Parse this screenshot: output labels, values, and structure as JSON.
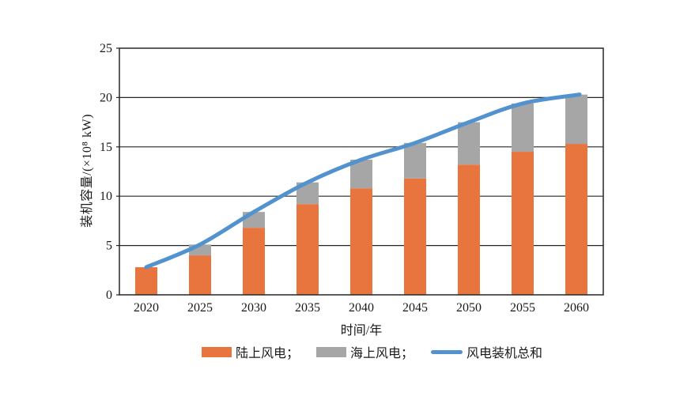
{
  "page": {
    "background": "#ffffff"
  },
  "chart_data": {
    "type": "bar",
    "subtype": "stacked-bar-with-line-overlay",
    "title": "",
    "xlabel": "时间/年",
    "ylabel": "装机容量/(×10⁸ kW)",
    "categories": [
      "2020",
      "2025",
      "2030",
      "2035",
      "2040",
      "2045",
      "2050",
      "2055",
      "2060"
    ],
    "series": [
      {
        "name": "陆上风电",
        "type": "bar",
        "color": "#E8743E",
        "values": [
          2.8,
          4.0,
          6.8,
          9.2,
          10.8,
          11.8,
          13.2,
          14.5,
          15.3
        ]
      },
      {
        "name": "海上风电",
        "type": "bar",
        "color": "#A6A6A6",
        "values": [
          0,
          1.1,
          1.6,
          2.2,
          2.9,
          3.6,
          4.3,
          4.9,
          5.0
        ]
      },
      {
        "name": "风电装机总和",
        "type": "line",
        "color": "#5292CE",
        "values": [
          2.8,
          5.1,
          8.4,
          11.4,
          13.7,
          15.4,
          17.5,
          19.4,
          20.3
        ]
      }
    ],
    "ylim": [
      0,
      25
    ],
    "yticks": [
      "0",
      "5",
      "10",
      "15",
      "20",
      "25"
    ],
    "grid": true,
    "axis_color": "#262626",
    "legend_position": "bottom",
    "legend": {
      "onshore_label": "陆上风电；",
      "offshore_label": "海上风电；",
      "total_label": "风电装机总和"
    }
  }
}
